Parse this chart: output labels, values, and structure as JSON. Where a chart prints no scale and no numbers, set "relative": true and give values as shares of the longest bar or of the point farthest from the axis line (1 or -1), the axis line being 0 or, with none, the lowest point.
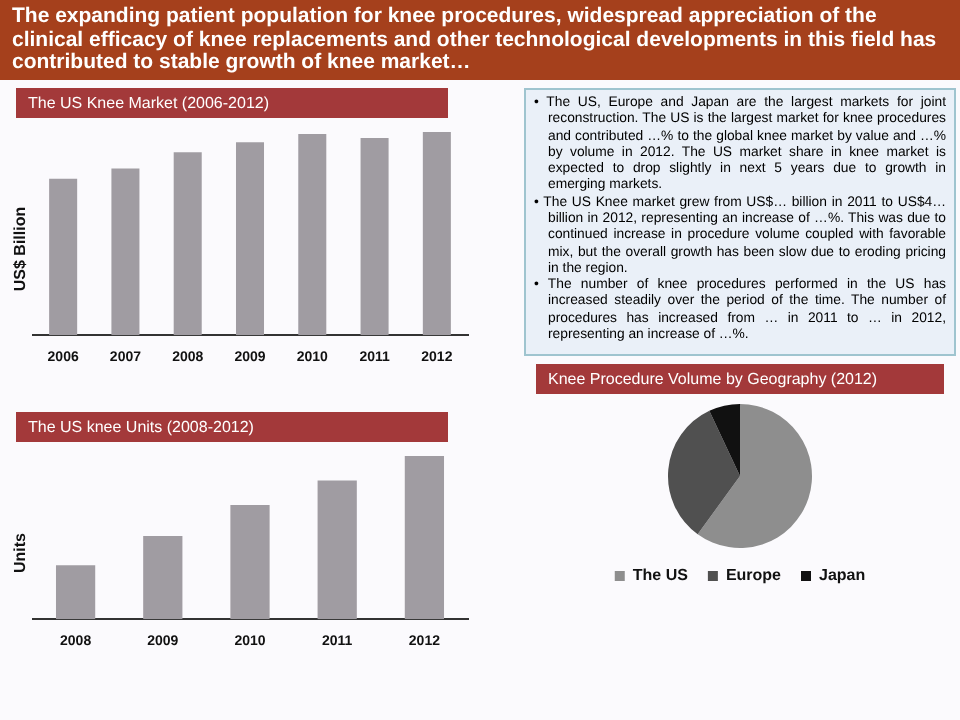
{
  "chart_data": [
    {
      "type": "other",
      "title": "The expanding patient population for knee procedures, widespread appreciation of the clinical efficacy of knee replacements and other technological developments in this field has contributed to stable growth of knee market…",
      "annotations": [
        "• The US, Europe and Japan are the largest markets for joint reconstruction. The US is the largest market for knee procedures and contributed …% to the global knee market by value and …% by volume in 2012. The US market share in knee market is expected to drop slightly in next 5 years due to growth in emerging markets.",
        "• The US Knee market grew from US$… billion in 2011 to US$4… billion in 2012, representing an increase of …%. This was due to continued increase in procedure volume coupled with favorable mix, but the overall growth has been slow due to eroding pricing in the region.",
        "• The number of knee procedures performed in the US has increased steadily over the period of the time. The number of procedures has increased from … in 2011 to … in 2012, representing an increase of …%."
      ]
    },
    {
      "type": "bar",
      "title": "The US Knee Market (2006-2012)",
      "ylabel": "US$ Billion",
      "relative": true,
      "categories": [
        "2006",
        "2007",
        "2008",
        "2009",
        "2010",
        "2011",
        "2012"
      ],
      "values": [
        0.77,
        0.82,
        0.9,
        0.95,
        0.99,
        0.97,
        1
      ],
      "color": "#a09ca2",
      "grid": false,
      "legend": false
    },
    {
      "type": "bar",
      "title": "The US knee Units (2008-2012)",
      "ylabel": "Units",
      "relative": true,
      "categories": [
        "2008",
        "2009",
        "2010",
        "2011",
        "2012"
      ],
      "values": [
        0.33,
        0.51,
        0.7,
        0.85,
        1
      ],
      "color": "#a09ca2",
      "grid": false,
      "legend": false
    },
    {
      "type": "pie",
      "title": "Knee Procedure Volume by Geography (2012)",
      "categories": [
        "The US",
        "Europe",
        "Japan"
      ],
      "values": [
        60,
        33,
        7
      ],
      "colors": [
        "#8e8e8e",
        "#505050",
        "#111111"
      ],
      "legend": "bottom"
    }
  ]
}
